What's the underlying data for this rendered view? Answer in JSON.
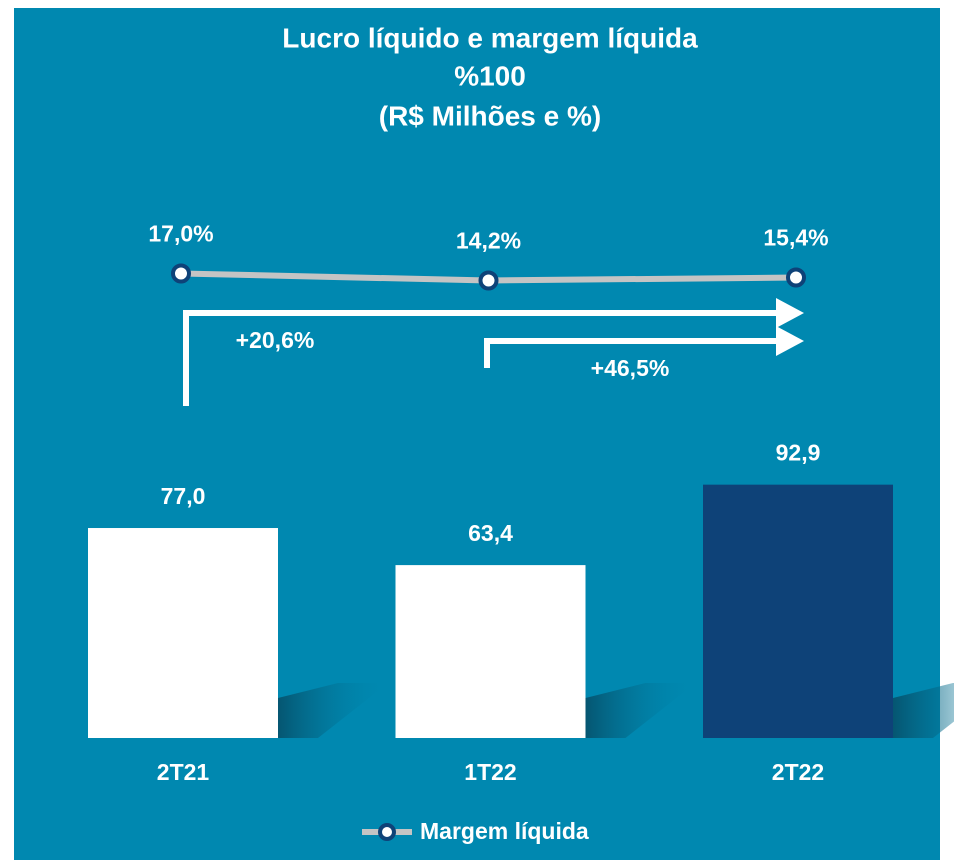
{
  "chart_data": {
    "type": "bar",
    "title": [
      "Lucro líquido e margem líquida",
      "%100",
      "(R$ Milhões e %)"
    ],
    "categories": [
      "2T21",
      "1T22",
      "2T22"
    ],
    "values": [
      77.0,
      63.4,
      92.9
    ],
    "value_labels": [
      "77,0",
      "63,4",
      "92,9"
    ],
    "colors": [
      "#ffffff",
      "#ffffff",
      "#0e4278"
    ],
    "line": {
      "name": "Margem líquida",
      "color": "#c4c4c4",
      "marker_color": "#0e4278",
      "values": [
        17.0,
        14.2,
        15.4
      ],
      "value_labels": [
        "17,0%",
        "14,2%",
        "15,4%"
      ]
    },
    "annotations": [
      "+20,6%",
      "+46,5%"
    ]
  }
}
